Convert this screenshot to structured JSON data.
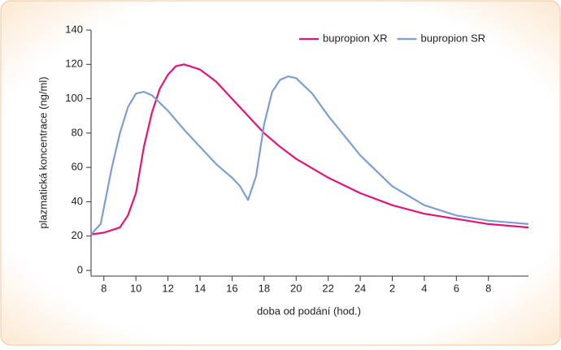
{
  "chart_data": {
    "type": "line",
    "y_label": "plazmatická koncentrace (ng/ml)",
    "x_label": "doba od podání (hod.)",
    "xlim": [
      7.2,
      34.5
    ],
    "xticks": [
      8,
      10,
      12,
      14,
      16,
      18,
      20,
      22,
      24,
      {
        "value": 26,
        "label": "2"
      },
      {
        "value": 28,
        "label": "4"
      },
      {
        "value": 30,
        "label": "6"
      },
      {
        "value": 32,
        "label": "8"
      }
    ],
    "ylim": [
      0,
      140
    ],
    "yticks": [
      0,
      20,
      40,
      60,
      80,
      100,
      120,
      140
    ],
    "legend": "top-right",
    "series": [
      {
        "name": "bupropion XR",
        "color": "#e2147a",
        "x": [
          7.2,
          8,
          9,
          9.5,
          10,
          10.5,
          11,
          11.5,
          12,
          12.5,
          13,
          14,
          15,
          16,
          17,
          18,
          19,
          20,
          22,
          24,
          26,
          28,
          30,
          32,
          34.5
        ],
        "values": [
          21,
          22,
          25,
          32,
          45,
          72,
          92,
          106,
          114,
          119,
          120,
          117,
          110,
          100,
          90,
          80,
          72,
          65,
          54,
          45,
          38,
          33,
          30,
          27,
          25
        ]
      },
      {
        "name": "bupropion SR",
        "color": "#7c9fd3",
        "x": [
          7.2,
          7.8,
          8.5,
          9,
          9.5,
          10,
          10.5,
          11,
          12,
          13,
          14,
          15,
          16,
          16.5,
          17,
          17.5,
          18,
          18.5,
          19,
          19.5,
          20,
          21,
          22,
          24,
          26,
          28,
          30,
          32,
          34.5
        ],
        "values": [
          21,
          27,
          60,
          80,
          95,
          103,
          104,
          102,
          93,
          82,
          72,
          62,
          54,
          49,
          41,
          55,
          85,
          104,
          111,
          113,
          112,
          103,
          90,
          67,
          49,
          38,
          32,
          29,
          27
        ]
      }
    ]
  }
}
